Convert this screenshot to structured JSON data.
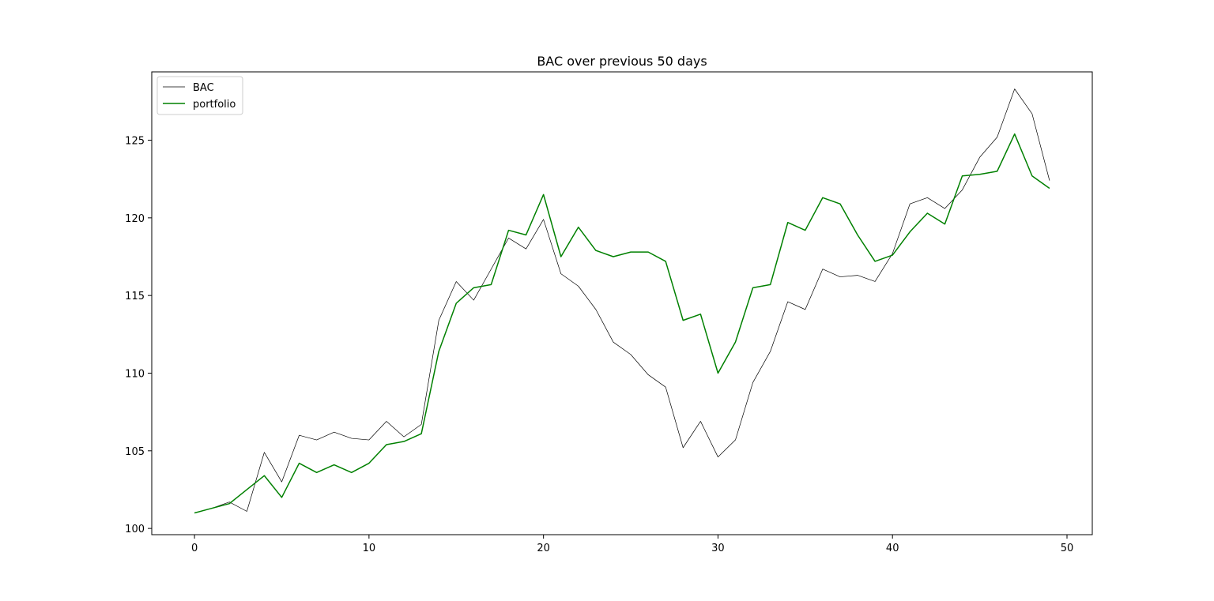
{
  "chart_data": {
    "type": "line",
    "title": "BAC over previous 50 days",
    "xlabel": "",
    "ylabel": "",
    "xlim": [
      -2.45,
      51.45
    ],
    "ylim": [
      99.6,
      129.4
    ],
    "xticks": [
      0,
      10,
      20,
      30,
      40,
      50
    ],
    "yticks": [
      100,
      105,
      110,
      115,
      120,
      125
    ],
    "grid": false,
    "legend_position": "top-left",
    "x": [
      0,
      1,
      2,
      3,
      4,
      5,
      6,
      7,
      8,
      9,
      10,
      11,
      12,
      13,
      14,
      15,
      16,
      17,
      18,
      19,
      20,
      21,
      22,
      23,
      24,
      25,
      26,
      27,
      28,
      29,
      30,
      31,
      32,
      33,
      34,
      35,
      36,
      37,
      38,
      39,
      40,
      41,
      42,
      43,
      44,
      45,
      46,
      47,
      48,
      49
    ],
    "series": [
      {
        "name": "BAC",
        "color": "#000000",
        "values": [
          101.0,
          101.3,
          101.7,
          101.1,
          104.9,
          103.0,
          106.0,
          105.7,
          106.2,
          105.8,
          105.7,
          106.9,
          105.9,
          106.7,
          113.4,
          115.9,
          114.7,
          116.7,
          118.7,
          118.0,
          119.9,
          116.4,
          115.6,
          114.1,
          112.0,
          111.2,
          109.9,
          109.1,
          105.2,
          106.9,
          104.6,
          105.7,
          109.4,
          111.4,
          114.6,
          114.1,
          116.7,
          116.2,
          116.3,
          115.9,
          117.7,
          120.9,
          121.3,
          120.6,
          121.8,
          123.9,
          125.2,
          128.3,
          126.7,
          122.4
        ]
      },
      {
        "name": "portfolio",
        "color": "#008000",
        "values": [
          101.0,
          101.3,
          101.6,
          102.5,
          103.4,
          102.0,
          104.2,
          103.6,
          104.1,
          103.6,
          104.2,
          105.4,
          105.6,
          106.1,
          111.4,
          114.5,
          115.5,
          115.7,
          119.2,
          118.9,
          121.5,
          117.5,
          119.4,
          117.9,
          117.5,
          117.8,
          117.8,
          117.2,
          113.4,
          113.8,
          110.0,
          112.0,
          115.5,
          115.7,
          119.7,
          119.2,
          121.3,
          120.9,
          118.9,
          117.2,
          117.6,
          119.1,
          120.3,
          119.6,
          122.7,
          122.8,
          123.0,
          125.4,
          122.7,
          121.9
        ]
      }
    ]
  }
}
